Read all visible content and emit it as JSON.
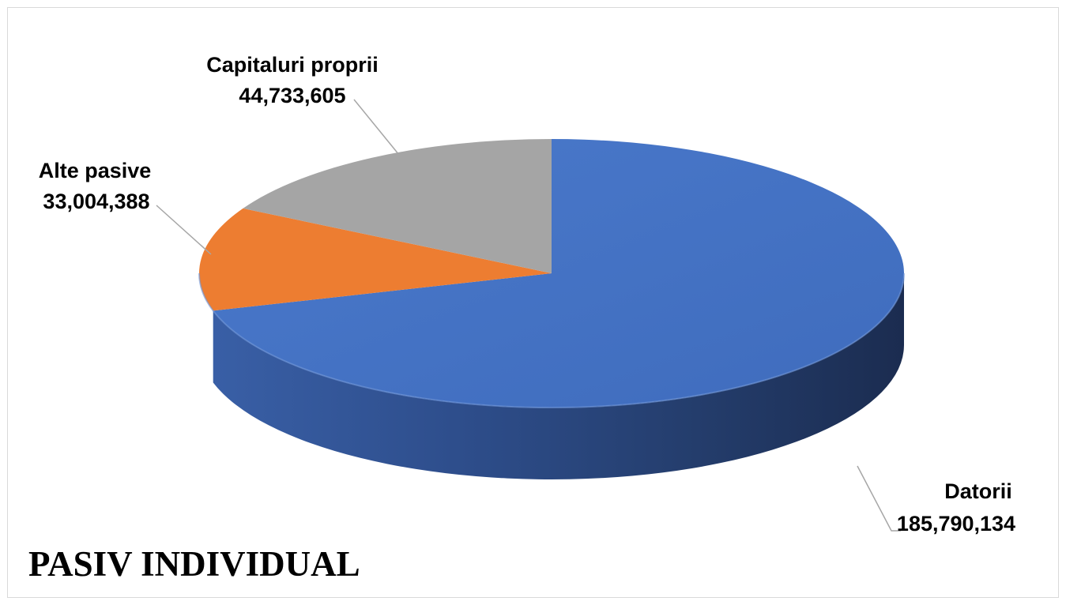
{
  "chart_data": {
    "type": "pie",
    "title": "PASIV INDIVIDUAL",
    "style": "3d",
    "slices": [
      {
        "name": "Datorii",
        "value": 185790134,
        "value_label": "185,790,134",
        "color": "#4472C4"
      },
      {
        "name": "Alte pasive",
        "value": 33004388,
        "value_label": "33,004,388",
        "color": "#ED7D31"
      },
      {
        "name": "Capitaluri proprii",
        "value": 44733605,
        "value_label": "44,733,605",
        "color": "#A5A5A5"
      }
    ],
    "legend": "none"
  }
}
